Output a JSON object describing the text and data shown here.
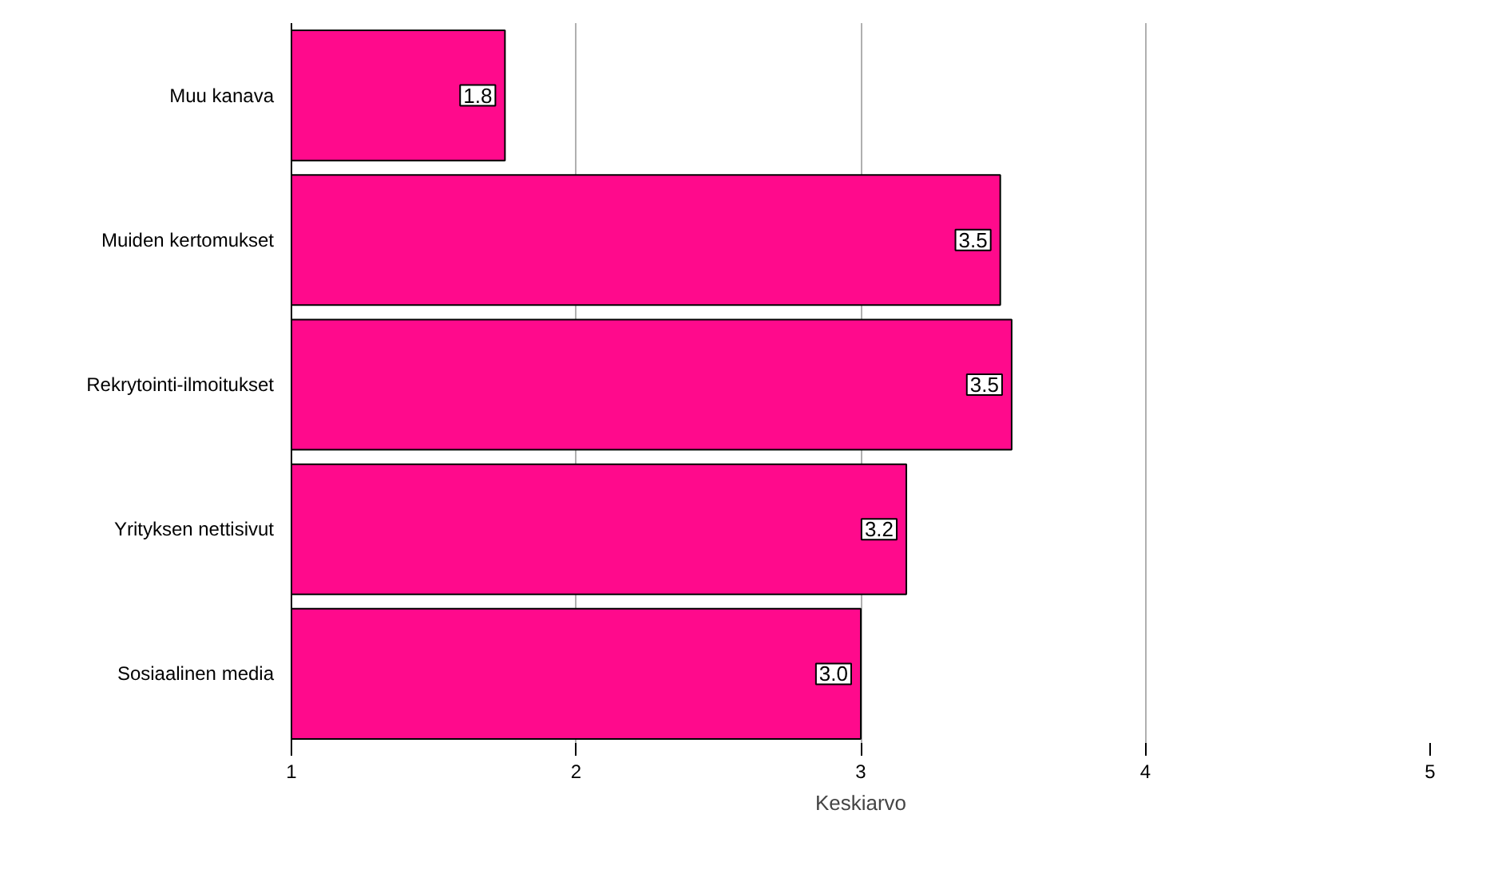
{
  "chart_data": {
    "type": "bar",
    "orientation": "horizontal",
    "xlabel": "Keskiarvo",
    "categories": [
      "Muu kanava",
      "Muiden kertomukset",
      "Rekrytointi-ilmoitukset",
      "Yrityksen nettisivut",
      "Sosiaalinen media"
    ],
    "values": [
      1.75,
      3.49,
      3.53,
      3.16,
      3.0
    ],
    "value_labels": [
      "1.8",
      "3.5",
      "3.5",
      "3.2",
      "3.0"
    ],
    "color": "#ff0a8c",
    "xlim": [
      1,
      5
    ],
    "xticks": [
      1,
      2,
      3,
      4,
      5
    ],
    "grid": "x"
  }
}
